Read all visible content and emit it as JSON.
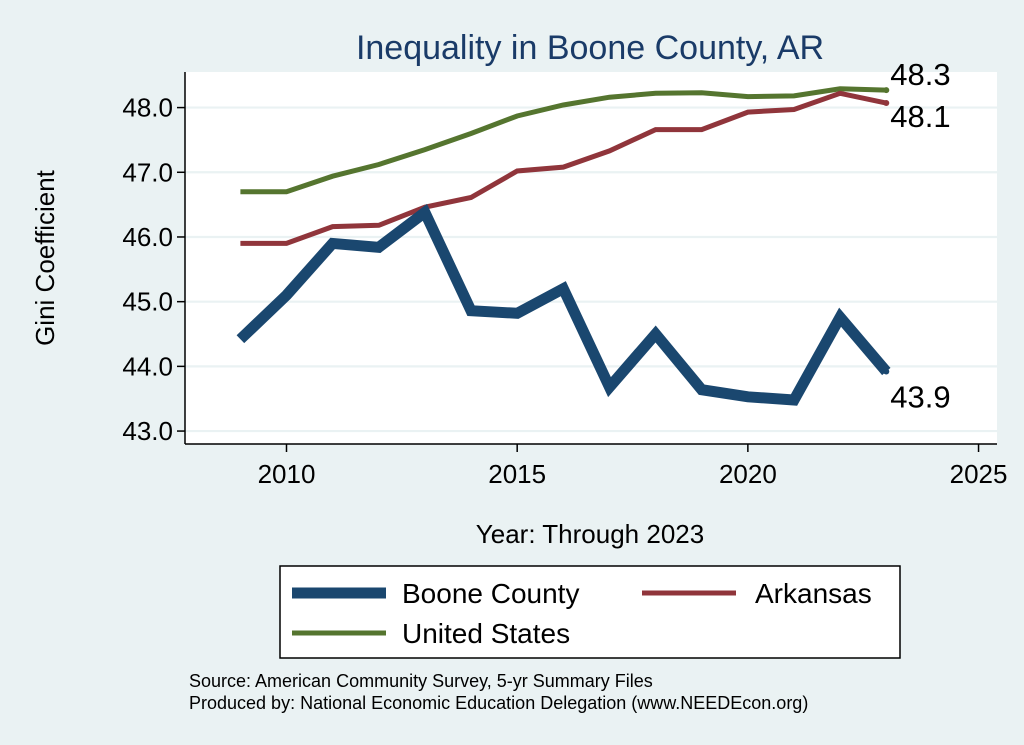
{
  "chart_data": {
    "type": "line",
    "title": "Inequality in Boone County, AR",
    "xlabel": "Year: Through 2023",
    "ylabel": "Gini Coefficient",
    "x": [
      2009,
      2010,
      2011,
      2012,
      2013,
      2014,
      2015,
      2016,
      2017,
      2018,
      2019,
      2020,
      2021,
      2022,
      2023
    ],
    "xlim": [
      2007.8,
      2025.4
    ],
    "ylim": [
      42.8,
      48.55
    ],
    "xticks": [
      2010,
      2015,
      2020,
      2025
    ],
    "xtick_labels": [
      "2010",
      "2015",
      "2020",
      "2025"
    ],
    "yticks": [
      43,
      44,
      45,
      46,
      47,
      48
    ],
    "ytick_labels": [
      "43.0",
      "44.0",
      "45.0",
      "46.0",
      "47.0",
      "48.0"
    ],
    "grid": true,
    "legend_position": "bottom",
    "series": [
      {
        "name": "Boone County",
        "color": "#1a476f",
        "values": [
          44.42,
          45.1,
          45.9,
          45.84,
          46.38,
          44.86,
          44.82,
          45.2,
          43.68,
          44.5,
          43.64,
          43.53,
          43.48,
          44.76,
          43.92
        ],
        "end_label": "43.9"
      },
      {
        "name": "Arkansas",
        "color": "#90353b",
        "values": [
          45.9,
          45.9,
          46.16,
          46.18,
          46.46,
          46.61,
          47.02,
          47.08,
          47.33,
          47.66,
          47.66,
          47.93,
          47.97,
          48.22,
          48.07
        ],
        "end_label": "48.1"
      },
      {
        "name": "United States",
        "color": "#55752f",
        "values": [
          46.7,
          46.7,
          46.94,
          47.12,
          47.35,
          47.6,
          47.87,
          48.04,
          48.16,
          48.22,
          48.23,
          48.17,
          48.18,
          48.29,
          48.27
        ],
        "end_label": "48.3"
      }
    ]
  },
  "source_line": "Source: American Community Survey, 5-yr Summary Files",
  "produced_line": "Produced by: National Economic Education Delegation (www.NEEDEcon.org)"
}
